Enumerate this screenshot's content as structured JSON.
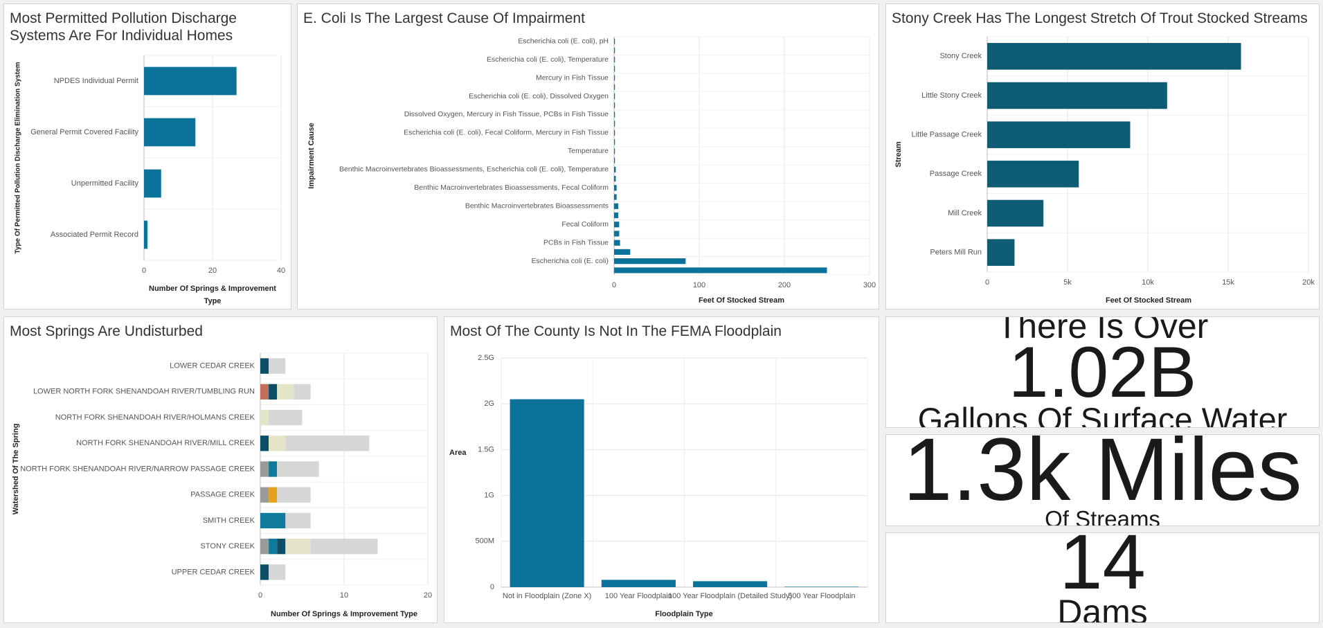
{
  "chart_data": [
    {
      "type": "hbar",
      "title": "Most Permitted Pollution Discharge Systems Are For Individual Homes",
      "x_label": "Number Of Springs & Improvement Type",
      "y_label": "Type Of Permitted Pollution Discharge Elimination System",
      "categories": [
        "NPDES Individual Permit",
        "General Permit Covered Facility",
        "Unpermitted Facility",
        "Associated Permit Record"
      ],
      "values": [
        27,
        15,
        5,
        1
      ],
      "color": "#0b7399",
      "xlim": [
        0,
        40
      ],
      "xticks": [
        0,
        20,
        40
      ],
      "grid": true
    },
    {
      "type": "hbar",
      "title": "E. Coli Is The Largest Cause Of Impairment",
      "x_label": "Feet Of Stocked Stream",
      "y_label": "Impairment Cause",
      "categories": [
        "Escherichia coli (E. coli), pH",
        null,
        "Escherichia coli (E. coli), Temperature",
        null,
        "Mercury in Fish Tissue",
        null,
        "Escherichia coli (E. coli), Dissolved Oxygen",
        null,
        "Dissolved Oxygen, Mercury in Fish Tissue, PCBs in Fish Tissue",
        null,
        "Escherichia coli (E. coli), Fecal Coliform, Mercury in Fish Tissue",
        null,
        "Temperature",
        null,
        "Benthic Macroinvertebrates Bioassessments, Escherichia coli (E. coli), Temperature",
        null,
        "Benthic Macroinvertebrates Bioassessments, Fecal Coliform",
        null,
        "Benthic Macroinvertebrates Bioassessments",
        null,
        "Fecal Coliform",
        null,
        "PCBs in Fish Tissue",
        null,
        "Escherichia coli (E. coli)",
        null
      ],
      "values": [
        1,
        1,
        1,
        1,
        1,
        1,
        1,
        1,
        1,
        1,
        1,
        1,
        1,
        1,
        2,
        2,
        3,
        3,
        5,
        5,
        6,
        6,
        7,
        19,
        84,
        250
      ],
      "color": "#0b7399",
      "xlim": [
        0,
        300
      ],
      "xticks": [
        0,
        100,
        200,
        300
      ],
      "grid": true
    },
    {
      "type": "hbar",
      "title": "Stony Creek Has The Longest Stretch Of Trout Stocked Streams",
      "x_label": "Feet Of Stocked Stream",
      "y_label": "Stream",
      "categories": [
        "Stony Creek",
        "Little Stony Creek",
        "Little Passage Creek",
        "Passage Creek",
        "Mill Creek",
        "Peters Mill Run"
      ],
      "values": [
        15800,
        11200,
        8900,
        5700,
        3500,
        1700
      ],
      "color": "#0d5c74",
      "xlim": [
        0,
        20000
      ],
      "xticks": [
        0,
        {
          "value": 5000,
          "label": "5k"
        },
        {
          "value": 10000,
          "label": "10k"
        },
        {
          "value": 15000,
          "label": "15k"
        },
        {
          "value": 20000,
          "label": "20k"
        }
      ],
      "grid": true
    },
    {
      "type": "stacked-hbar",
      "title": "Most Springs Are Undisturbed",
      "x_label": "Number Of Springs & Improvement Type",
      "y_label": "Watershed Of The Spring",
      "categories": [
        "LOWER CEDAR CREEK",
        "LOWER NORTH FORK SHENANDOAH RIVER/TUMBLING RUN",
        "NORTH FORK SHENANDOAH RIVER/HOLMANS CREEK",
        "NORTH FORK SHENANDOAH RIVER/MILL CREEK",
        "NORTH FORK SHENANDOAH RIVER/NARROW PASSAGE CREEK",
        "PASSAGE CREEK",
        "SMITH CREEK",
        "STONY CREEK",
        "UPPER CEDAR CREEK"
      ],
      "series": [
        {
          "color": "#9a9a9a",
          "values": [
            0,
            0,
            0,
            0,
            1,
            1,
            0,
            1,
            0
          ]
        },
        {
          "color": "#c0705a",
          "values": [
            0,
            1,
            0,
            0,
            0,
            0,
            0,
            0,
            0
          ]
        },
        {
          "color": "#e3a21a",
          "values": [
            0,
            0,
            0,
            0,
            0,
            1,
            0,
            0,
            0
          ]
        },
        {
          "color": "#0f7a9c",
          "values": [
            0,
            0,
            0,
            0,
            1,
            0,
            3,
            1,
            0
          ]
        },
        {
          "color": "#0b4f66",
          "values": [
            1,
            1,
            0,
            1,
            0,
            0,
            0,
            1,
            1
          ]
        },
        {
          "color": "#e4e5c8",
          "values": [
            0,
            2,
            1,
            2,
            0,
            0,
            0,
            3,
            0
          ]
        },
        {
          "color": "#d6d6d6",
          "values": [
            2,
            2,
            4,
            10,
            5,
            4,
            3,
            8,
            2
          ]
        }
      ],
      "xlim": [
        0,
        20
      ],
      "xticks": [
        0,
        10,
        20
      ],
      "grid": true
    },
    {
      "type": "vbar",
      "title": "Most Of The County Is Not In The FEMA Floodplain",
      "x_label": "Floodplain Type",
      "y_label": "Area",
      "categories": [
        "Not in Floodplain (Zone X)",
        "100 Year Floodplain",
        "100 Year Floodplain (Detailed Study)",
        "500 Year Floodplain"
      ],
      "values": [
        2050000000,
        80000000,
        65000000,
        5000000
      ],
      "color": "#0b7399",
      "ylim": [
        0,
        2500000000
      ],
      "yticks": [
        0,
        {
          "value": 500000000,
          "label": "500M"
        },
        {
          "value": 1000000000,
          "label": "1G"
        },
        {
          "value": 1500000000,
          "label": "1.5G"
        },
        {
          "value": 2000000000,
          "label": "2G"
        },
        {
          "value": 2500000000,
          "label": "2.5G"
        }
      ],
      "grid": true
    }
  ],
  "indicators": [
    {
      "top": "There Is Over",
      "value": "1.02B",
      "bottom": "Gallons Of Surface Water"
    },
    {
      "value": "1.3k Miles",
      "bottom": "Of Streams"
    },
    {
      "value": "14",
      "bottom": "Dams"
    }
  ]
}
